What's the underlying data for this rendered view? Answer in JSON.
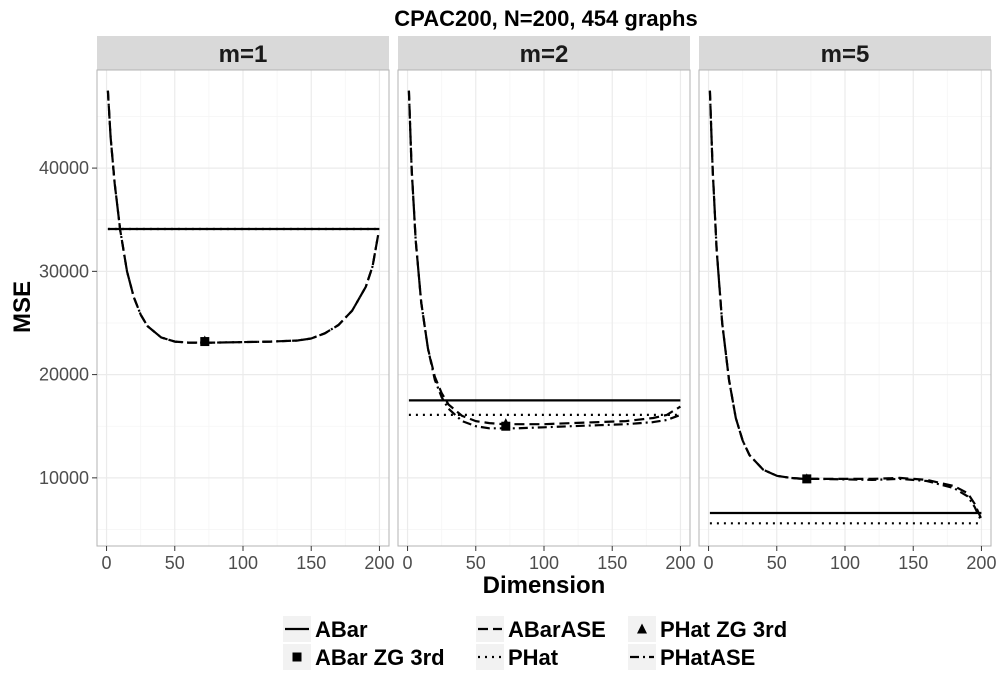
{
  "chart_data": {
    "type": "line",
    "title": "CPAC200, N=200, 454 graphs",
    "xlabel": "Dimension",
    "ylabel": "MSE",
    "xlim": [
      -7,
      207
    ],
    "ylim": [
      3400,
      49500
    ],
    "x_ticks": [
      0,
      50,
      100,
      150,
      200
    ],
    "x_tick_labels": [
      "0",
      "50",
      "100",
      "150",
      "200"
    ],
    "y_ticks": [
      10000,
      20000,
      30000,
      40000
    ],
    "y_tick_labels": [
      "10000",
      "20000",
      "30000",
      "40000"
    ],
    "grid": true,
    "legend_position": "bottom",
    "panels": [
      {
        "label": "m=1",
        "series": [
          {
            "name": "ABar",
            "x": [
              1,
              200
            ],
            "y": [
              34100,
              34100
            ]
          },
          {
            "name": "PHat",
            "x": [
              1,
              200
            ],
            "y": [
              34100,
              34100
            ]
          },
          {
            "name": "ABarASE",
            "x": [
              1,
              3,
              6,
              10,
              15,
              20,
              25,
              30,
              40,
              50,
              60,
              70,
              80,
              100,
              120,
              140,
              150,
              160,
              170,
              180,
              190,
              195,
              199
            ],
            "y": [
              47500,
              43000,
              38500,
              34000,
              30000,
              27500,
              25800,
              24700,
              23600,
              23200,
              23100,
              23100,
              23100,
              23150,
              23200,
              23300,
              23500,
              24000,
              24800,
              26200,
              28500,
              30500,
              33500
            ]
          },
          {
            "name": "PHatASE",
            "x": [
              1,
              3,
              6,
              10,
              15,
              20,
              25,
              30,
              40,
              50,
              60,
              70,
              80,
              100,
              120,
              140,
              150,
              160,
              170,
              180,
              190,
              195,
              199
            ],
            "y": [
              47500,
              43000,
              38500,
              34000,
              30000,
              27500,
              25800,
              24700,
              23600,
              23200,
              23100,
              23100,
              23100,
              23150,
              23200,
              23300,
              23500,
              24000,
              24800,
              26200,
              28500,
              30500,
              33500
            ]
          },
          {
            "name": "ABar ZG 3rd",
            "x": [
              72
            ],
            "y": [
              23200
            ]
          },
          {
            "name": "PHat ZG 3rd",
            "x": [
              72
            ],
            "y": [
              23300
            ]
          }
        ]
      },
      {
        "label": "m=2",
        "series": [
          {
            "name": "ABar",
            "x": [
              1,
              200
            ],
            "y": [
              17500,
              17500
            ]
          },
          {
            "name": "PHat",
            "x": [
              1,
              200
            ],
            "y": [
              16100,
              16100
            ]
          },
          {
            "name": "ABarASE",
            "x": [
              1,
              3,
              6,
              10,
              15,
              20,
              25,
              30,
              40,
              50,
              60,
              70,
              80,
              100,
              120,
              140,
              160,
              180,
              190,
              200
            ],
            "y": [
              47500,
              40000,
              33000,
              27000,
              22500,
              19800,
              18200,
              17100,
              16000,
              15500,
              15300,
              15200,
              15200,
              15200,
              15300,
              15400,
              15500,
              15800,
              16100,
              16900
            ]
          },
          {
            "name": "PHatASE",
            "x": [
              1,
              3,
              6,
              10,
              15,
              20,
              25,
              30,
              40,
              50,
              60,
              70,
              80,
              100,
              120,
              140,
              160,
              180,
              190,
              200
            ],
            "y": [
              47500,
              40000,
              33000,
              27000,
              22500,
              19500,
              17800,
              16700,
              15500,
              15000,
              14800,
              14800,
              14800,
              14900,
              15000,
              15100,
              15200,
              15400,
              15600,
              16100
            ]
          },
          {
            "name": "ABar ZG 3rd",
            "x": [
              72
            ],
            "y": [
              15000
            ]
          },
          {
            "name": "PHat ZG 3rd",
            "x": [
              72
            ],
            "y": [
              15300
            ]
          }
        ]
      },
      {
        "label": "m=5",
        "series": [
          {
            "name": "ABar",
            "x": [
              1,
              200
            ],
            "y": [
              6600,
              6600
            ]
          },
          {
            "name": "PHat",
            "x": [
              1,
              200
            ],
            "y": [
              5600,
              5600
            ]
          },
          {
            "name": "ABarASE",
            "x": [
              1,
              3,
              6,
              10,
              15,
              20,
              25,
              30,
              40,
              50,
              60,
              70,
              80,
              100,
              120,
              140,
              160,
              180,
              190,
              195,
              200
            ],
            "y": [
              47500,
              40000,
              32000,
              25000,
              19500,
              15800,
              13600,
              12200,
              10800,
              10200,
              10000,
              9900,
              9900,
              9900,
              9900,
              10000,
              9800,
              9200,
              8500,
              7500,
              6000
            ]
          },
          {
            "name": "PHatASE",
            "x": [
              1,
              3,
              6,
              10,
              15,
              20,
              25,
              30,
              40,
              50,
              60,
              70,
              80,
              100,
              120,
              140,
              160,
              180,
              190,
              195,
              200
            ],
            "y": [
              47500,
              40000,
              32000,
              25000,
              19500,
              15800,
              13600,
              12200,
              10800,
              10200,
              10000,
              9900,
              9900,
              9850,
              9800,
              9900,
              9700,
              9000,
              8200,
              7200,
              5800
            ]
          },
          {
            "name": "ABar ZG 3rd",
            "x": [
              72
            ],
            "y": [
              9900
            ]
          },
          {
            "name": "PHat ZG 3rd",
            "x": [
              72
            ],
            "y": [
              9950
            ]
          }
        ]
      }
    ],
    "legend": {
      "items": [
        {
          "name": "ABar",
          "key": "ABar"
        },
        {
          "name": "ABarASE",
          "key": "ABarASE"
        },
        {
          "name": "PHat ZG 3rd",
          "key": "PHat ZG 3rd"
        },
        {
          "name": "ABar ZG 3rd",
          "key": "ABar ZG 3rd"
        },
        {
          "name": "PHat",
          "key": "PHat"
        },
        {
          "name": "PHatASE",
          "key": "PHatASE"
        }
      ]
    },
    "colors": {
      "strip_background": "#d9d9d9",
      "grid_major": "#ebebeb",
      "grid_minor": "#f5f5f5",
      "panel_border": "#b3b3b3",
      "line": "#000000",
      "tick_text": "#4d4d4d"
    }
  }
}
